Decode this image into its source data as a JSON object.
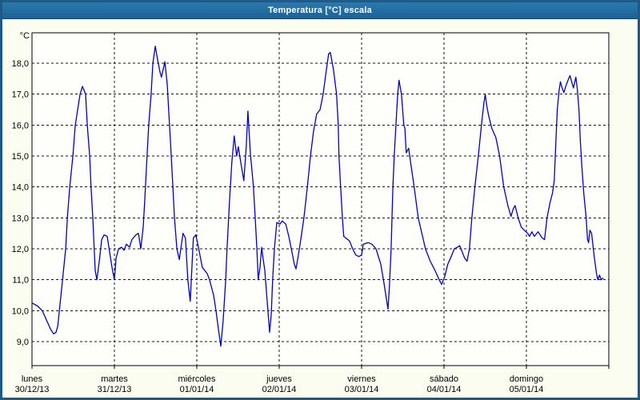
{
  "window": {
    "title": "Temperatura [°C] escala"
  },
  "chart_data": {
    "type": "line",
    "title": "Temperatura [°C] escala",
    "grid": "dashed",
    "legend_position": "none",
    "line_color": "#0000cd",
    "y_axis": {
      "unit_label": "°C",
      "min": 9.0,
      "max": 18.0,
      "tick_step": 1.0,
      "ticks": [
        {
          "value": 18,
          "label": "18,0"
        },
        {
          "value": 17,
          "label": "17,0"
        },
        {
          "value": 16,
          "label": "16,0"
        },
        {
          "value": 15,
          "label": "15,0"
        },
        {
          "value": 14,
          "label": "14,0"
        },
        {
          "value": 13,
          "label": "13,0"
        },
        {
          "value": 12,
          "label": "12,0"
        },
        {
          "value": 11,
          "label": "11,0"
        },
        {
          "value": 10,
          "label": "10,0"
        },
        {
          "value": 9,
          "label": "9,0"
        }
      ]
    },
    "x_axis": {
      "unit": "hours",
      "range_hours": [
        0,
        168
      ],
      "day_width_hours": 24,
      "days": [
        {
          "name": "lunes",
          "date": "30/12/13",
          "start_hour": 0
        },
        {
          "name": "martes",
          "date": "31/12/13",
          "start_hour": 24
        },
        {
          "name": "miércoles",
          "date": "01/01/14",
          "start_hour": 48
        },
        {
          "name": "jueves",
          "date": "02/01/14",
          "start_hour": 72
        },
        {
          "name": "viernes",
          "date": "03/01/14",
          "start_hour": 96
        },
        {
          "name": "sábado",
          "date": "04/01/14",
          "start_hour": 120
        },
        {
          "name": "domingo",
          "date": "05/01/14",
          "start_hour": 144
        }
      ]
    },
    "series": [
      {
        "name": "Temperatura",
        "points": [
          [
            0,
            10.25
          ],
          [
            1.6,
            10.15
          ],
          [
            3,
            10.0
          ],
          [
            4.2,
            9.7
          ],
          [
            5.4,
            9.4
          ],
          [
            6.3,
            9.25
          ],
          [
            7,
            9.3
          ],
          [
            7.5,
            9.5
          ],
          [
            8.2,
            10.25
          ],
          [
            8.9,
            11.0
          ],
          [
            9.8,
            12.0
          ],
          [
            10.3,
            13.0
          ],
          [
            11,
            14.0
          ],
          [
            11.9,
            15.0
          ],
          [
            12.6,
            16.0
          ],
          [
            14,
            17.0
          ],
          [
            14.7,
            17.25
          ],
          [
            15.6,
            17.0
          ],
          [
            16.1,
            16.0
          ],
          [
            16.8,
            15.0
          ],
          [
            17.2,
            14.0
          ],
          [
            17.7,
            13.0
          ],
          [
            18.4,
            11.3
          ],
          [
            18.9,
            11.0
          ],
          [
            19.6,
            11.6
          ],
          [
            20.3,
            12.3
          ],
          [
            21,
            12.45
          ],
          [
            21.9,
            12.4
          ],
          [
            22.6,
            11.9
          ],
          [
            23.3,
            11.4
          ],
          [
            24,
            11.0
          ],
          [
            24.5,
            11.7
          ],
          [
            25.2,
            12.0
          ],
          [
            26.1,
            12.05
          ],
          [
            26.8,
            11.95
          ],
          [
            27.5,
            12.15
          ],
          [
            28.4,
            12.05
          ],
          [
            29.1,
            12.3
          ],
          [
            30.3,
            12.45
          ],
          [
            31,
            12.5
          ],
          [
            31.7,
            12.0
          ],
          [
            32.4,
            12.7
          ],
          [
            32.8,
            13.5
          ],
          [
            33.5,
            15.0
          ],
          [
            34,
            16.0
          ],
          [
            34.7,
            17.0
          ],
          [
            35.2,
            18.0
          ],
          [
            35.9,
            18.55
          ],
          [
            36.6,
            18.1
          ],
          [
            37.3,
            17.7
          ],
          [
            37.7,
            17.55
          ],
          [
            38.7,
            18.05
          ],
          [
            39.4,
            17.3
          ],
          [
            39.8,
            16.5
          ],
          [
            40.3,
            15.5
          ],
          [
            40.8,
            14.5
          ],
          [
            41.5,
            13.0
          ],
          [
            42.2,
            12.0
          ],
          [
            42.9,
            11.65
          ],
          [
            43.6,
            12.2
          ],
          [
            44,
            12.5
          ],
          [
            44.7,
            12.35
          ],
          [
            45.4,
            11.0
          ],
          [
            46.1,
            10.3
          ],
          [
            47,
            12.35
          ],
          [
            47.7,
            12.45
          ],
          [
            48.2,
            12.2
          ],
          [
            48.9,
            11.8
          ],
          [
            49.6,
            11.4
          ],
          [
            51,
            11.2
          ],
          [
            51.7,
            11.0
          ],
          [
            52.9,
            10.5
          ],
          [
            53.6,
            10.0
          ],
          [
            54.3,
            9.4
          ],
          [
            55,
            8.85
          ],
          [
            55.7,
            9.7
          ],
          [
            56.4,
            11.0
          ],
          [
            56.8,
            12.0
          ],
          [
            57.5,
            13.5
          ],
          [
            58.2,
            14.8
          ],
          [
            58.9,
            15.65
          ],
          [
            59.6,
            15.0
          ],
          [
            60.1,
            15.3
          ],
          [
            60.8,
            14.8
          ],
          [
            61.7,
            14.2
          ],
          [
            62.4,
            15.3
          ],
          [
            62.9,
            16.45
          ],
          [
            63.6,
            15.1
          ],
          [
            64,
            14.6
          ],
          [
            64.5,
            14.0
          ],
          [
            65,
            13.0
          ],
          [
            65.5,
            12.0
          ],
          [
            65.9,
            11.0
          ],
          [
            66.4,
            11.4
          ],
          [
            66.9,
            12.05
          ],
          [
            67.3,
            11.7
          ],
          [
            67.8,
            11.3
          ],
          [
            68.5,
            10.3
          ],
          [
            69.2,
            9.3
          ],
          [
            69.7,
            9.9
          ],
          [
            70.1,
            11.0
          ],
          [
            70.6,
            12.0
          ],
          [
            71.3,
            12.85
          ],
          [
            72.2,
            12.8
          ],
          [
            72.9,
            12.9
          ],
          [
            73.9,
            12.8
          ],
          [
            74.8,
            12.4
          ],
          [
            75.7,
            11.9
          ],
          [
            76.4,
            11.5
          ],
          [
            76.9,
            11.35
          ],
          [
            77.6,
            11.8
          ],
          [
            78.3,
            12.3
          ],
          [
            79.2,
            13.0
          ],
          [
            80.2,
            14.0
          ],
          [
            81.1,
            15.0
          ],
          [
            82,
            15.8
          ],
          [
            82.9,
            16.35
          ],
          [
            83.9,
            16.5
          ],
          [
            84.8,
            17.0
          ],
          [
            86,
            18.0
          ],
          [
            86.4,
            18.3
          ],
          [
            86.9,
            18.35
          ],
          [
            87.8,
            17.8
          ],
          [
            88.7,
            17.0
          ],
          [
            89.2,
            16.0
          ],
          [
            89.4,
            15.0
          ],
          [
            89.9,
            14.0
          ],
          [
            90.4,
            13.0
          ],
          [
            90.8,
            12.4
          ],
          [
            92.5,
            12.25
          ],
          [
            93.4,
            12.0
          ],
          [
            94.3,
            11.8
          ],
          [
            95.2,
            11.75
          ],
          [
            96,
            11.8
          ],
          [
            96.5,
            12.15
          ],
          [
            97.9,
            12.2
          ],
          [
            99,
            12.15
          ],
          [
            100.2,
            12.0
          ],
          [
            101.6,
            11.5
          ],
          [
            102.5,
            10.9
          ],
          [
            103.2,
            10.4
          ],
          [
            103.7,
            10.05
          ],
          [
            104.1,
            10.8
          ],
          [
            104.6,
            12.0
          ],
          [
            105.1,
            14.0
          ],
          [
            105.5,
            15.0
          ],
          [
            106,
            16.0
          ],
          [
            106.5,
            17.0
          ],
          [
            106.9,
            17.45
          ],
          [
            107.6,
            17.0
          ],
          [
            108.3,
            16.0
          ],
          [
            108.6,
            15.9
          ],
          [
            109,
            15.1
          ],
          [
            109.7,
            15.25
          ],
          [
            110.4,
            14.7
          ],
          [
            111.3,
            14.0
          ],
          [
            112.5,
            13.0
          ],
          [
            114.6,
            12.0
          ],
          [
            116,
            11.6
          ],
          [
            117.4,
            11.3
          ],
          [
            118.6,
            11.0
          ],
          [
            119.3,
            10.85
          ],
          [
            120.2,
            11.1
          ],
          [
            121.1,
            11.5
          ],
          [
            122.1,
            11.75
          ],
          [
            123,
            12.0
          ],
          [
            123.9,
            12.05
          ],
          [
            124.6,
            12.1
          ],
          [
            125.3,
            11.9
          ],
          [
            126,
            11.7
          ],
          [
            126.7,
            11.6
          ],
          [
            127.4,
            12.0
          ],
          [
            128.1,
            13.0
          ],
          [
            129,
            14.0
          ],
          [
            130,
            15.0
          ],
          [
            130.9,
            16.0
          ],
          [
            131.6,
            16.7
          ],
          [
            132,
            17.0
          ],
          [
            132.5,
            16.6
          ],
          [
            133,
            16.3
          ],
          [
            133.9,
            15.9
          ],
          [
            135.1,
            15.6
          ],
          [
            136.2,
            15.0
          ],
          [
            137.4,
            14.0
          ],
          [
            138.6,
            13.4
          ],
          [
            139.5,
            13.05
          ],
          [
            140.2,
            13.3
          ],
          [
            140.7,
            13.4
          ],
          [
            141.6,
            13.0
          ],
          [
            142.5,
            12.7
          ],
          [
            143.4,
            12.6
          ],
          [
            144.4,
            12.5
          ],
          [
            144.9,
            12.4
          ],
          [
            145.6,
            12.55
          ],
          [
            146.3,
            12.4
          ],
          [
            147.4,
            12.55
          ],
          [
            148.6,
            12.35
          ],
          [
            149.3,
            12.3
          ],
          [
            150,
            13.0
          ],
          [
            150.9,
            13.5
          ],
          [
            151.6,
            13.8
          ],
          [
            152.1,
            14.2
          ],
          [
            152.6,
            15.5
          ],
          [
            153,
            16.5
          ],
          [
            153.5,
            17.1
          ],
          [
            153.9,
            17.4
          ],
          [
            154.4,
            17.2
          ],
          [
            154.9,
            17.05
          ],
          [
            155.6,
            17.3
          ],
          [
            156.3,
            17.5
          ],
          [
            156.7,
            17.6
          ],
          [
            157.2,
            17.4
          ],
          [
            157.7,
            17.2
          ],
          [
            158.4,
            17.55
          ],
          [
            158.8,
            17.2
          ],
          [
            159.3,
            16.5
          ],
          [
            159.7,
            15.5
          ],
          [
            160.2,
            14.6
          ],
          [
            160.7,
            13.8
          ],
          [
            161.4,
            13.0
          ],
          [
            161.8,
            12.3
          ],
          [
            162.1,
            12.2
          ],
          [
            162.5,
            12.6
          ],
          [
            163,
            12.5
          ],
          [
            163.7,
            11.8
          ],
          [
            164.4,
            11.2
          ],
          [
            164.8,
            11.0
          ],
          [
            165.3,
            11.15
          ],
          [
            165.8,
            11.0
          ],
          [
            166.3,
            11.05
          ]
        ]
      }
    ]
  }
}
